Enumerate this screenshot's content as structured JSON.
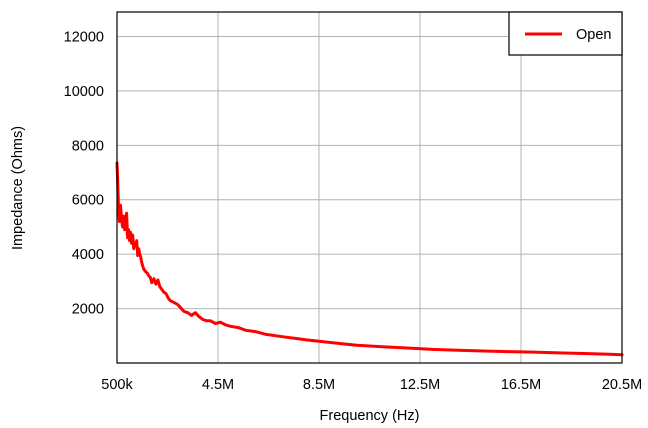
{
  "chart_data": {
    "type": "line",
    "title": "",
    "xlabel": "Frequency (Hz)",
    "ylabel": "Impedance (Ohms)",
    "xlim": [
      500000,
      20500000
    ],
    "ylim": [
      0,
      12900
    ],
    "grid": true,
    "legend_position": "top-right",
    "x_ticks": [
      {
        "value": 500000,
        "label": "500k"
      },
      {
        "value": 4500000,
        "label": "4.5M"
      },
      {
        "value": 8500000,
        "label": "8.5M"
      },
      {
        "value": 12500000,
        "label": "12.5M"
      },
      {
        "value": 16500000,
        "label": "16.5M"
      },
      {
        "value": 20500000,
        "label": "20.5M"
      }
    ],
    "y_ticks": [
      {
        "value": 2000,
        "label": "2000"
      },
      {
        "value": 4000,
        "label": "4000"
      },
      {
        "value": 6000,
        "label": "6000"
      },
      {
        "value": 8000,
        "label": "8000"
      },
      {
        "value": 10000,
        "label": "10000"
      },
      {
        "value": 12000,
        "label": "12000"
      }
    ],
    "series": [
      {
        "name": "Open",
        "color": "#ff0000",
        "x": [
          500000,
          520000,
          560000,
          600000,
          640000,
          680000,
          720000,
          760000,
          800000,
          840000,
          880000,
          920000,
          960000,
          1000000,
          1040000,
          1080000,
          1120000,
          1160000,
          1200000,
          1240000,
          1280000,
          1320000,
          1360000,
          1400000,
          1440000,
          1480000,
          1520000,
          1560000,
          1600000,
          1640000,
          1700000,
          1760000,
          1820000,
          1880000,
          1960000,
          2040000,
          2120000,
          2200000,
          2280000,
          2360000,
          2440000,
          2520000,
          2600000,
          2700000,
          2800000,
          2900000,
          3000000,
          3150000,
          3300000,
          3450000,
          3600000,
          3750000,
          3900000,
          4050000,
          4200000,
          4400000,
          4600000,
          4800000,
          5000000,
          5300000,
          5600000,
          6000000,
          6400000,
          6800000,
          7200000,
          7600000,
          8000000,
          8500000,
          9000000,
          9500000,
          10000000,
          11000000,
          12000000,
          13000000,
          14000000,
          15000000,
          16000000,
          17000000,
          18000000,
          19000000,
          20000000,
          20500000
        ],
        "y": [
          7350,
          6900,
          5700,
          5200,
          5800,
          5300,
          5000,
          5400,
          4900,
          5100,
          5500,
          4600,
          4900,
          4500,
          4800,
          4400,
          4700,
          4200,
          4400,
          4300,
          4500,
          3950,
          4200,
          4000,
          3900,
          3700,
          3550,
          3450,
          3400,
          3350,
          3300,
          3200,
          3150,
          2950,
          3100,
          2900,
          3050,
          2800,
          2700,
          2600,
          2550,
          2400,
          2300,
          2250,
          2200,
          2150,
          2050,
          1900,
          1850,
          1750,
          1850,
          1700,
          1600,
          1550,
          1550,
          1450,
          1500,
          1400,
          1350,
          1300,
          1200,
          1150,
          1050,
          1000,
          950,
          900,
          850,
          800,
          750,
          700,
          650,
          600,
          550,
          500,
          470,
          440,
          420,
          400,
          370,
          350,
          320,
          300
        ]
      }
    ]
  }
}
